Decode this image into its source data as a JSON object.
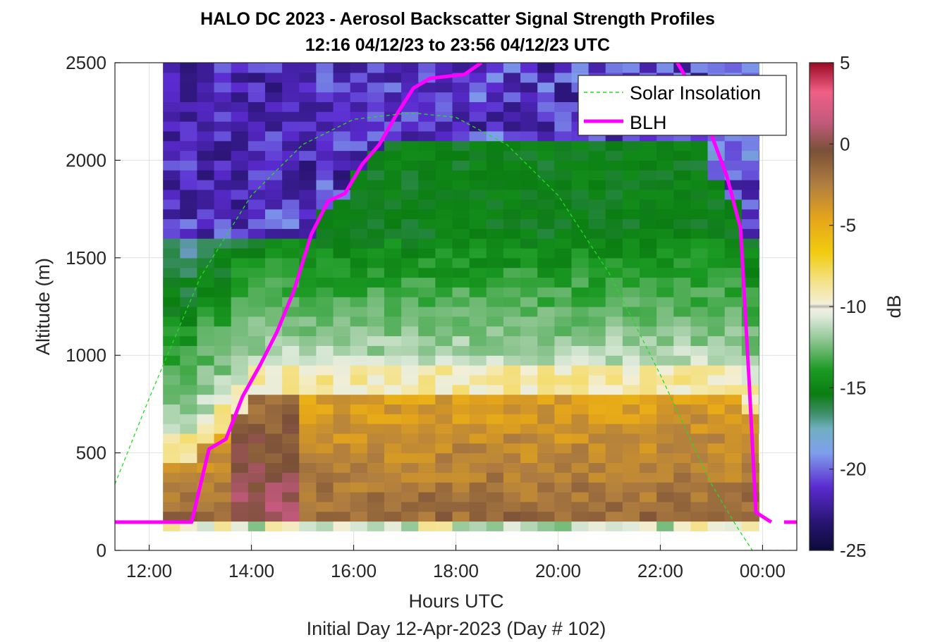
{
  "chart_data": {
    "type": "heatmap",
    "title": "HALO DC 2023 - Aerosol Backscatter Signal Strength Profiles",
    "subtitle": "12:16 04/12/23 to 23:56 04/12/23  UTC",
    "xlabel": "Hours UTC",
    "xlabel2": "Initial Day 12-Apr-2023 (Day # 102)",
    "ylabel": "Altitude (m)",
    "colorbar_label": "dB",
    "xlim": [
      11.33,
      24.67
    ],
    "ylim": [
      0,
      2500
    ],
    "clim": [
      -25,
      5
    ],
    "x_ticks": [
      {
        "v": 12,
        "label": "12:00"
      },
      {
        "v": 14,
        "label": "14:00"
      },
      {
        "v": 16,
        "label": "16:00"
      },
      {
        "v": 18,
        "label": "18:00"
      },
      {
        "v": 20,
        "label": "20:00"
      },
      {
        "v": 22,
        "label": "22:00"
      },
      {
        "v": 24,
        "label": "00:00"
      }
    ],
    "y_ticks": [
      {
        "v": 0,
        "label": "0"
      },
      {
        "v": 500,
        "label": "500"
      },
      {
        "v": 1000,
        "label": "1000"
      },
      {
        "v": 1500,
        "label": "1500"
      },
      {
        "v": 2000,
        "label": "2000"
      },
      {
        "v": 2500,
        "label": "2500"
      }
    ],
    "c_ticks": [
      {
        "v": 5,
        "label": "5"
      },
      {
        "v": 0,
        "label": "0"
      },
      {
        "v": -5,
        "label": "-5"
      },
      {
        "v": -10,
        "label": "-10"
      },
      {
        "v": -15,
        "label": "-15"
      },
      {
        "v": -20,
        "label": "-20"
      },
      {
        "v": -25,
        "label": "-25"
      }
    ],
    "grid": true,
    "legend": {
      "position": "top-right",
      "entries": [
        {
          "name": "Solar Insolation",
          "color": "#22dd22",
          "style": "dashed"
        },
        {
          "name": "BLH",
          "color": "#ff00ff",
          "style": "solid"
        }
      ]
    },
    "heatmap": {
      "x_start": 12.27,
      "x_end": 23.93,
      "dx": 0.333,
      "dy": 50,
      "y_start": 100,
      "y_end": 2500
    },
    "series": [
      {
        "name": "BLH",
        "color": "#ff00ff",
        "x": [
          11.33,
          12.83,
          13.17,
          13.5,
          13.83,
          14.17,
          14.5,
          14.83,
          15.17,
          15.5,
          15.83,
          16.17,
          16.5,
          16.83,
          17.17,
          17.5,
          17.83,
          18.17,
          18.5
        ],
        "y": [
          145,
          145,
          520,
          570,
          790,
          950,
          1120,
          1330,
          1620,
          1790,
          1830,
          1980,
          2080,
          2230,
          2370,
          2420,
          2430,
          2440,
          2500
        ]
      },
      {
        "name": "BLH",
        "color": "#ff00ff",
        "x": [
          22.33,
          22.67,
          23.0,
          23.3,
          23.57,
          23.73,
          23.87,
          24.17
        ],
        "y": [
          2500,
          2350,
          2130,
          1920,
          1650,
          900,
          195,
          145
        ]
      },
      {
        "name": "BLH",
        "color": "#ff00ff",
        "x": [
          24.42,
          24.67
        ],
        "y": [
          145,
          145
        ]
      },
      {
        "name": "Solar Insolation",
        "color": "#22dd22",
        "dashed": true,
        "x": [
          11.33,
          12.0,
          13.0,
          14.0,
          15.0,
          16.0,
          17.0,
          17.25,
          18.0,
          19.0,
          20.0,
          21.0,
          22.0,
          23.0,
          23.5,
          23.8,
          24.67
        ],
        "y": [
          340,
          780,
          1400,
          1820,
          2080,
          2210,
          2240,
          2240,
          2220,
          2080,
          1820,
          1420,
          900,
          340,
          120,
          0,
          0
        ]
      }
    ]
  }
}
